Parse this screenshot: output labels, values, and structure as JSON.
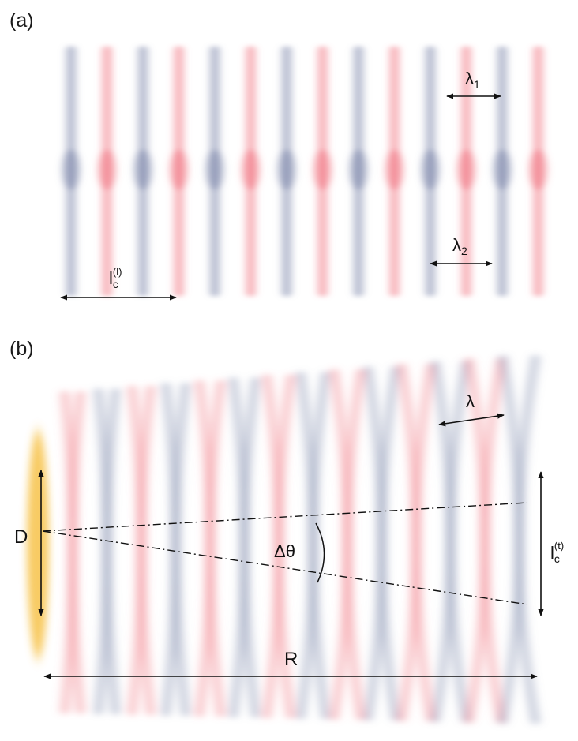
{
  "panel_a": {
    "label": "(a)",
    "lambda1": {
      "base": "λ",
      "sub": "1"
    },
    "lambda2": {
      "base": "λ",
      "sub": "2"
    },
    "coherence_length": {
      "base": "l",
      "sub": "c",
      "sup": "(l)"
    }
  },
  "panel_b": {
    "label": "(b)",
    "lambda": "λ",
    "source_size": "D",
    "angle": "Δθ",
    "distance": "R",
    "coherence_length": {
      "base": "l",
      "sub": "c",
      "sup": "(t)"
    }
  },
  "colors": {
    "red_wave": "#f0737f",
    "blue_wave": "#7a84a8",
    "source": "#f7c24a",
    "line": "#111111"
  }
}
